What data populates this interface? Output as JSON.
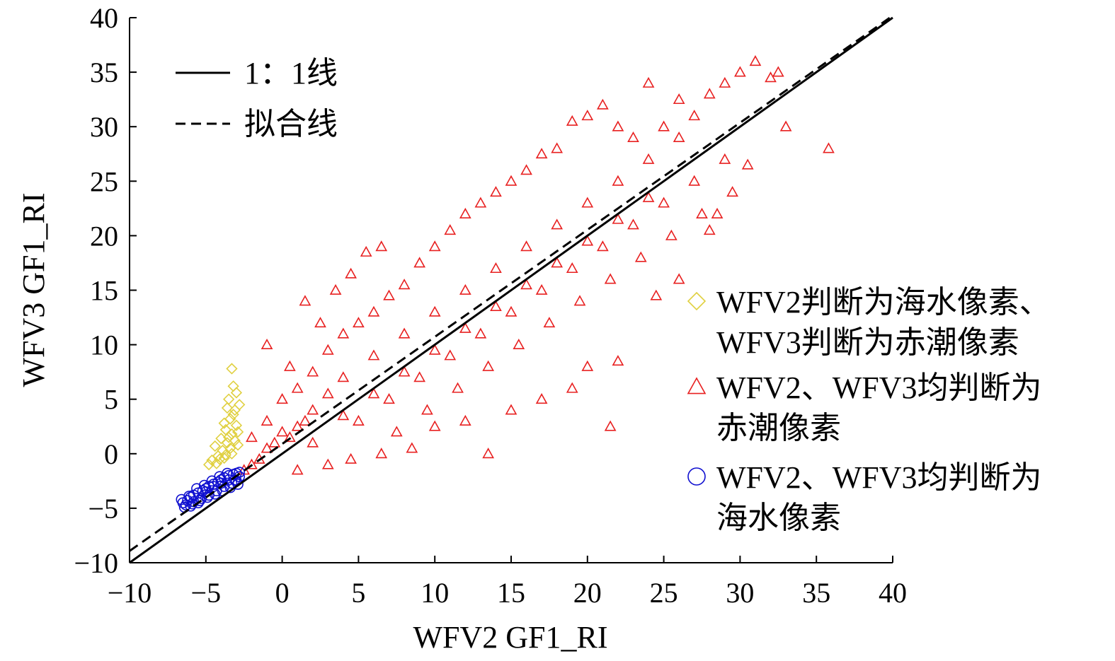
{
  "chart_data": {
    "type": "scatter",
    "xlabel": "WFV2 GF1_RI",
    "ylabel": "WFV3 GF1_RI",
    "xlim": [
      -10,
      40
    ],
    "ylim": [
      -10,
      40
    ],
    "xticks": [
      "−10",
      "−5",
      "0",
      "5",
      "10",
      "15",
      "20",
      "25",
      "30",
      "35",
      "40"
    ],
    "yticks": [
      "−10",
      "−5",
      "0",
      "5",
      "10",
      "15",
      "20",
      "25",
      "30",
      "35",
      "40"
    ],
    "grid": false,
    "lines": [
      {
        "name": "1：1线",
        "style": "solid",
        "color": "#000000",
        "slope": 1.0,
        "intercept": 0.0,
        "x_range": [
          -10,
          40
        ]
      },
      {
        "name": "拟合线",
        "style": "dashed",
        "color": "#000000",
        "slope": 0.982,
        "intercept": 0.9,
        "x_range": [
          -10,
          40
        ]
      }
    ],
    "legend_top_left": [
      {
        "label": "1：1线",
        "style": "solid"
      },
      {
        "label": "拟合线",
        "style": "dashed"
      }
    ],
    "series": [
      {
        "name": "WFV2判断为海水像素、WFV3判断为赤潮像素",
        "legend_lines": [
          "WFV2判断为海水像素、",
          "WFV3判断为赤潮像素"
        ],
        "marker": "diamond",
        "color": "#e0d040",
        "points": [
          [
            -4.6,
            -0.6
          ],
          [
            -4.2,
            -0.2
          ],
          [
            -3.9,
            0.3
          ],
          [
            -3.6,
            1.0
          ],
          [
            -3.3,
            1.8
          ],
          [
            -3.0,
            2.6
          ],
          [
            -3.4,
            3.2
          ],
          [
            -3.1,
            4.0
          ],
          [
            -3.5,
            5.0
          ],
          [
            -3.2,
            6.2
          ],
          [
            -3.3,
            7.8
          ],
          [
            -4.4,
            0.7
          ],
          [
            -4.0,
            1.4
          ],
          [
            -3.7,
            2.2
          ],
          [
            -3.2,
            3.6
          ],
          [
            -4.8,
            -1.0
          ],
          [
            -4.3,
            -0.9
          ],
          [
            -3.8,
            -0.4
          ],
          [
            -3.4,
            0.5
          ],
          [
            -3.1,
            1.2
          ],
          [
            -2.9,
            2.0
          ],
          [
            -2.8,
            4.5
          ],
          [
            -3.6,
            4.2
          ],
          [
            -3.0,
            5.6
          ],
          [
            -4.1,
            -0.5
          ],
          [
            -3.7,
            -0.1
          ],
          [
            -3.3,
            0.0
          ],
          [
            -2.9,
            0.8
          ],
          [
            -3.5,
            1.5
          ],
          [
            -3.8,
            2.8
          ]
        ]
      },
      {
        "name": "WFV2、WFV3均判断为赤潮像素",
        "legend_lines": [
          "WFV2、WFV3均判断为",
          "赤潮像素"
        ],
        "marker": "triangle",
        "color": "#e82020",
        "points": [
          [
            -2.5,
            -1.5
          ],
          [
            -2.0,
            -1.0
          ],
          [
            -1.5,
            -0.5
          ],
          [
            -1.0,
            0.5
          ],
          [
            -0.5,
            1.0
          ],
          [
            0.0,
            2.0
          ],
          [
            0.5,
            1.5
          ],
          [
            1.0,
            2.5
          ],
          [
            1.5,
            3.0
          ],
          [
            2.0,
            4.0
          ],
          [
            -2.0,
            1.5
          ],
          [
            -1.0,
            3.0
          ],
          [
            0.0,
            5.0
          ],
          [
            1.0,
            6.0
          ],
          [
            2.0,
            7.5
          ],
          [
            0.5,
            8.0
          ],
          [
            -1.0,
            10.0
          ],
          [
            1.5,
            14.0
          ],
          [
            2.5,
            12.0
          ],
          [
            3.5,
            15.0
          ],
          [
            4.5,
            16.5
          ],
          [
            5.5,
            18.5
          ],
          [
            6.5,
            19.0
          ],
          [
            3.0,
            9.5
          ],
          [
            4.0,
            11.0
          ],
          [
            5.0,
            12.0
          ],
          [
            6.0,
            13.0
          ],
          [
            7.0,
            14.5
          ],
          [
            8.0,
            15.5
          ],
          [
            9.0,
            17.5
          ],
          [
            10.0,
            19.0
          ],
          [
            11.0,
            20.5
          ],
          [
            12.0,
            22.0
          ],
          [
            13.0,
            23.0
          ],
          [
            14.0,
            24.0
          ],
          [
            15.0,
            25.0
          ],
          [
            16.0,
            26.0
          ],
          [
            17.0,
            27.5
          ],
          [
            18.0,
            28.0
          ],
          [
            19.0,
            30.5
          ],
          [
            20.0,
            31.0
          ],
          [
            21.0,
            32.0
          ],
          [
            22.0,
            30.0
          ],
          [
            23.0,
            29.0
          ],
          [
            24.0,
            34.0
          ],
          [
            25.0,
            30.0
          ],
          [
            26.0,
            32.5
          ],
          [
            27.0,
            31.0
          ],
          [
            28.0,
            33.0
          ],
          [
            29.0,
            34.0
          ],
          [
            30.0,
            35.0
          ],
          [
            31.0,
            36.0
          ],
          [
            32.0,
            34.5
          ],
          [
            33.0,
            30.0
          ],
          [
            35.8,
            28.0
          ],
          [
            32.5,
            35.0
          ],
          [
            21.5,
            2.5
          ],
          [
            13.5,
            0.0
          ],
          [
            20.0,
            8.0
          ],
          [
            22.0,
            8.5
          ],
          [
            19.0,
            6.0
          ],
          [
            17.0,
            5.0
          ],
          [
            15.0,
            4.0
          ],
          [
            12.0,
            3.0
          ],
          [
            10.0,
            2.5
          ],
          [
            8.5,
            0.5
          ],
          [
            6.5,
            0.0
          ],
          [
            4.5,
            -0.5
          ],
          [
            3.0,
            -1.0
          ],
          [
            1.0,
            -1.5
          ],
          [
            5.0,
            3.0
          ],
          [
            7.0,
            5.0
          ],
          [
            9.0,
            7.0
          ],
          [
            11.0,
            9.0
          ],
          [
            13.0,
            11.0
          ],
          [
            15.0,
            13.0
          ],
          [
            17.0,
            15.0
          ],
          [
            19.0,
            17.0
          ],
          [
            21.0,
            19.0
          ],
          [
            23.0,
            21.0
          ],
          [
            25.0,
            23.0
          ],
          [
            27.0,
            25.0
          ],
          [
            29.0,
            27.0
          ],
          [
            24.5,
            14.5
          ],
          [
            26.0,
            16.0
          ],
          [
            28.0,
            20.5
          ],
          [
            28.5,
            22.0
          ],
          [
            29.5,
            24.0
          ],
          [
            30.5,
            26.5
          ],
          [
            3.0,
            5.5
          ],
          [
            4.0,
            7.0
          ],
          [
            6.0,
            9.0
          ],
          [
            8.0,
            11.0
          ],
          [
            10.0,
            13.0
          ],
          [
            12.0,
            15.0
          ],
          [
            14.0,
            17.0
          ],
          [
            16.0,
            19.0
          ],
          [
            18.0,
            21.0
          ],
          [
            20.0,
            23.0
          ],
          [
            22.0,
            25.0
          ],
          [
            24.0,
            27.0
          ],
          [
            26.0,
            29.0
          ],
          [
            2.0,
            1.0
          ],
          [
            4.0,
            3.5
          ],
          [
            6.0,
            5.5
          ],
          [
            8.0,
            7.5
          ],
          [
            10.0,
            9.5
          ],
          [
            12.0,
            11.5
          ],
          [
            14.0,
            13.5
          ],
          [
            16.0,
            15.5
          ],
          [
            18.0,
            17.5
          ],
          [
            20.0,
            19.5
          ],
          [
            22.0,
            21.5
          ],
          [
            24.0,
            23.5
          ],
          [
            7.5,
            2.0
          ],
          [
            9.5,
            4.0
          ],
          [
            11.5,
            6.0
          ],
          [
            13.5,
            8.0
          ],
          [
            15.5,
            10.0
          ],
          [
            17.5,
            12.0
          ],
          [
            19.5,
            14.0
          ],
          [
            21.5,
            16.0
          ],
          [
            23.5,
            18.0
          ],
          [
            25.5,
            20.0
          ],
          [
            27.5,
            22.0
          ]
        ]
      },
      {
        "name": "WFV2、WFV3均判断为海水像素",
        "legend_lines": [
          "WFV2、WFV3均判断为",
          "海水像素"
        ],
        "marker": "circle",
        "color": "#1010d0",
        "points": [
          [
            -6.5,
            -4.5
          ],
          [
            -6.2,
            -4.3
          ],
          [
            -6.0,
            -4.0
          ],
          [
            -5.8,
            -3.8
          ],
          [
            -5.5,
            -3.6
          ],
          [
            -5.2,
            -3.4
          ],
          [
            -5.0,
            -3.2
          ],
          [
            -4.8,
            -3.0
          ],
          [
            -4.5,
            -2.8
          ],
          [
            -4.2,
            -2.6
          ],
          [
            -4.0,
            -2.4
          ],
          [
            -3.8,
            -2.2
          ],
          [
            -3.5,
            -2.0
          ],
          [
            -3.2,
            -1.9
          ],
          [
            -3.0,
            -1.8
          ],
          [
            -2.8,
            -2.1
          ],
          [
            -3.3,
            -2.7
          ],
          [
            -3.8,
            -3.0
          ],
          [
            -4.3,
            -3.4
          ],
          [
            -4.8,
            -3.8
          ],
          [
            -5.3,
            -4.1
          ],
          [
            -5.8,
            -4.4
          ],
          [
            -6.3,
            -4.7
          ],
          [
            -6.6,
            -4.2
          ],
          [
            -6.1,
            -3.9
          ],
          [
            -5.6,
            -3.2
          ],
          [
            -5.1,
            -2.9
          ],
          [
            -4.6,
            -2.5
          ],
          [
            -4.1,
            -2.1
          ],
          [
            -3.6,
            -1.8
          ],
          [
            -3.1,
            -2.4
          ],
          [
            -2.9,
            -2.8
          ],
          [
            -3.4,
            -3.1
          ],
          [
            -3.9,
            -3.4
          ],
          [
            -4.4,
            -3.7
          ],
          [
            -4.9,
            -4.0
          ],
          [
            -5.4,
            -4.3
          ],
          [
            -5.9,
            -4.6
          ],
          [
            -6.4,
            -4.9
          ],
          [
            -5.0,
            -3.5
          ],
          [
            -4.5,
            -3.0
          ],
          [
            -4.0,
            -2.7
          ],
          [
            -3.5,
            -2.4
          ],
          [
            -6.0,
            -4.8
          ],
          [
            -5.5,
            -4.5
          ],
          [
            -2.8,
            -1.7
          ],
          [
            -3.0,
            -2.5
          ]
        ]
      }
    ]
  }
}
